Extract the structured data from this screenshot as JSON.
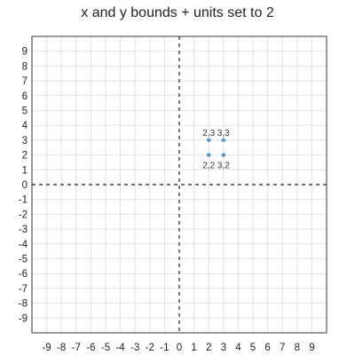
{
  "chart_data": {
    "type": "scatter",
    "title": "x and y bounds + units set to 2",
    "xlim": [
      -10,
      10
    ],
    "ylim": [
      -10,
      10
    ],
    "grid": true,
    "x_ticks": [
      -9,
      -8,
      -7,
      -6,
      -5,
      -4,
      -3,
      -2,
      -1,
      0,
      1,
      2,
      3,
      4,
      5,
      6,
      7,
      8,
      9
    ],
    "y_ticks": [
      9,
      8,
      7,
      6,
      5,
      4,
      3,
      2,
      1,
      0,
      -1,
      -2,
      -3,
      -4,
      -5,
      -6,
      -7,
      -8,
      -9
    ],
    "points": [
      {
        "x": 2,
        "y": 3,
        "label": "2,3"
      },
      {
        "x": 3,
        "y": 3,
        "label": "3,3"
      },
      {
        "x": 2,
        "y": 2,
        "label": "2,2"
      },
      {
        "x": 3,
        "y": 2,
        "label": "3,2"
      }
    ],
    "colors": {
      "point": "#5b9bd5",
      "grid": "#e2e2e2",
      "axis": "#222222",
      "frame": "#333333"
    }
  }
}
